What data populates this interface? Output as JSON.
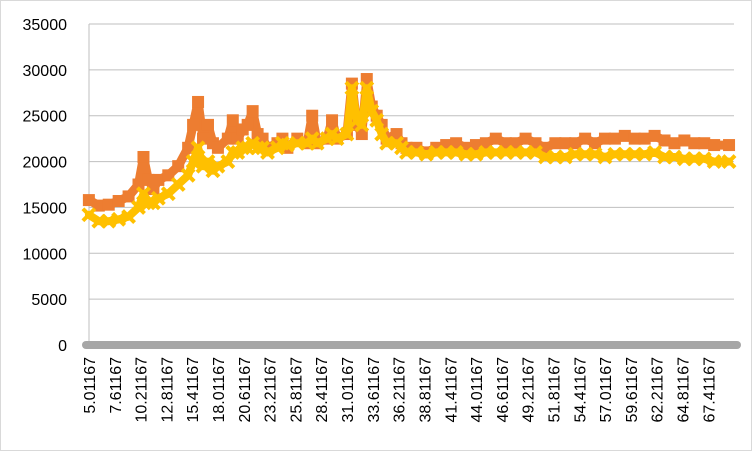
{
  "chart_data": {
    "type": "line",
    "title": "",
    "xlabel": "",
    "ylabel": "",
    "ylim": [
      0,
      35000
    ],
    "y_ticks": [
      "0",
      "5000",
      "10000",
      "15000",
      "20000",
      "25000",
      "30000",
      "35000"
    ],
    "xlim": [
      5.01167,
      70.0
    ],
    "x_ticks": [
      "5.01167",
      "7.61167",
      "10.21167",
      "12.81167",
      "15.41167",
      "18.01167",
      "20.61167",
      "23.21167",
      "25.81167",
      "28.41167",
      "31.01167",
      "33.61167",
      "36.21167",
      "38.81167",
      "41.41167",
      "44.01167",
      "46.61167",
      "49.21167",
      "51.81167",
      "54.41167",
      "57.01167",
      "59.61167",
      "62.21167",
      "64.81167",
      "67.41167"
    ],
    "grid": true,
    "legend": "none",
    "series": [
      {
        "color": "#ED7D31",
        "marker": "square",
        "x": [
          5,
          6,
          7,
          8,
          9,
          10,
          10.5,
          11,
          11.5,
          12,
          13,
          14,
          15,
          15.5,
          16,
          16.5,
          17,
          17.5,
          18,
          19,
          19.5,
          20,
          20.5,
          21,
          21.5,
          22,
          22.5,
          23,
          24,
          24.5,
          25,
          26,
          27,
          27.5,
          28,
          29,
          29.5,
          30,
          31,
          31.5,
          32,
          32.5,
          33,
          33.5,
          34,
          34.5,
          35,
          36,
          36.5,
          37,
          38,
          39,
          40,
          41,
          42,
          43,
          44,
          45,
          46,
          47,
          48,
          49,
          50,
          51,
          52,
          53,
          54,
          55,
          56,
          57,
          58,
          59,
          60,
          61,
          62,
          63,
          64,
          65,
          66,
          67,
          68,
          69.5
        ],
        "y": [
          15800,
          15200,
          15300,
          15700,
          16200,
          17500,
          20500,
          18000,
          17000,
          18000,
          18500,
          19500,
          21500,
          24000,
          26500,
          22500,
          24000,
          22000,
          21500,
          22500,
          24500,
          22500,
          23500,
          24000,
          25500,
          23000,
          22500,
          21500,
          22000,
          22500,
          21500,
          22500,
          22000,
          25000,
          22000,
          22500,
          24500,
          22500,
          23000,
          28500,
          24000,
          23000,
          29000,
          26000,
          25000,
          24000,
          22500,
          23000,
          22000,
          21500,
          21500,
          21000,
          21500,
          21800,
          22000,
          21500,
          21800,
          22000,
          22500,
          22000,
          22000,
          22500,
          22000,
          21500,
          22000,
          22000,
          22000,
          22500,
          22000,
          22500,
          22500,
          22800,
          22500,
          22500,
          22800,
          22300,
          22000,
          22300,
          22000,
          22000,
          21800,
          21800
        ]
      },
      {
        "color": "#FFC000",
        "marker": "cross",
        "x": [
          5,
          6,
          7,
          8,
          9,
          10,
          10.5,
          11,
          11.5,
          12,
          13,
          14,
          15,
          15.5,
          16,
          16.5,
          17,
          17.5,
          18,
          19,
          19.5,
          20,
          20.5,
          21,
          21.5,
          22,
          22.5,
          23,
          24,
          24.5,
          25,
          26,
          27,
          27.5,
          28,
          29,
          29.5,
          30,
          31,
          31.5,
          32,
          32.5,
          33,
          33.5,
          34,
          34.5,
          35,
          36,
          36.5,
          37,
          38,
          39,
          40,
          41,
          42,
          43,
          44,
          45,
          46,
          47,
          48,
          49,
          50,
          51,
          52,
          53,
          54,
          55,
          56,
          57,
          58,
          59,
          60,
          61,
          62,
          63,
          64,
          65,
          66,
          67,
          68,
          69.5
        ],
        "y": [
          14200,
          13500,
          13500,
          13700,
          14000,
          15000,
          16500,
          15500,
          15500,
          16000,
          16500,
          17500,
          18500,
          20000,
          21500,
          19500,
          20000,
          19000,
          19500,
          20000,
          21000,
          21000,
          21500,
          21500,
          22000,
          21500,
          21500,
          21000,
          21500,
          22000,
          21800,
          22000,
          22000,
          22500,
          22000,
          22500,
          23000,
          22500,
          23000,
          28000,
          24500,
          24000,
          28000,
          25500,
          24500,
          23000,
          22000,
          22000,
          21500,
          21000,
          21000,
          20800,
          21000,
          21000,
          21000,
          20800,
          20800,
          21000,
          21000,
          21000,
          21000,
          21000,
          21000,
          20500,
          20500,
          20500,
          20800,
          20800,
          20800,
          20500,
          20800,
          20800,
          20800,
          20800,
          21000,
          20500,
          20500,
          20300,
          20300,
          20300,
          20000,
          20000
        ]
      }
    ]
  }
}
